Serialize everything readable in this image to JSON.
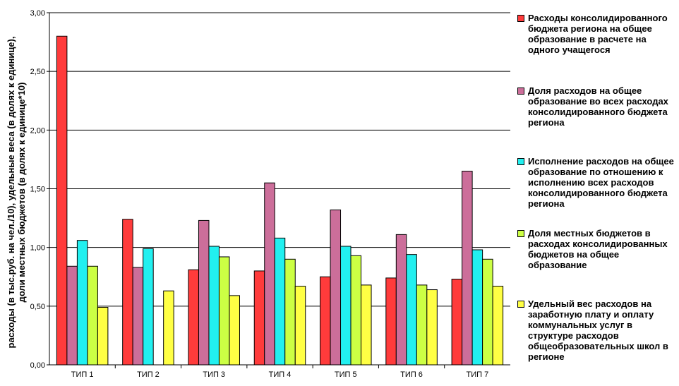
{
  "chart_data": {
    "type": "bar",
    "categories": [
      "ТИП 1",
      "ТИП 2",
      "ТИП 3",
      "ТИП 4",
      "ТИП 5",
      "ТИП 6",
      "ТИП 7"
    ],
    "series": [
      {
        "name": "Расходы консолидированного бюджета региона на общее образование в расчете на одного учащегося",
        "color": "#ff3b3b",
        "values": [
          2.8,
          1.24,
          0.81,
          0.8,
          0.75,
          0.74,
          0.73
        ]
      },
      {
        "name": "Доля расходов на общее образование во всех расходах консолидированного бюджета региона",
        "color": "#cc6e9a",
        "values": [
          0.84,
          0.83,
          1.23,
          1.55,
          1.32,
          1.11,
          1.65
        ]
      },
      {
        "name": "Исполнение расходов на общее образование по отношению к исполнению всех расходов консолидированного бюджета региона",
        "color": "#22f0f0",
        "values": [
          1.06,
          0.99,
          1.01,
          1.08,
          1.01,
          0.94,
          0.98
        ]
      },
      {
        "name": "Доля местных бюджетов в расходах консолидированных бюджетов на общее образование",
        "color": "#ccff44",
        "values": [
          0.84,
          0.0,
          0.92,
          0.9,
          0.93,
          0.68,
          0.9
        ]
      },
      {
        "name": "Удельный вес расходов на заработную плату и оплату коммунальных услуг в структуре расходов общеобразовательных школ в регионе",
        "color": "#ffff44",
        "values": [
          0.49,
          0.63,
          0.59,
          0.67,
          0.68,
          0.64,
          0.67
        ]
      }
    ],
    "title": "",
    "xlabel": "",
    "ylabel": "расходы (в тыс.руб. на чел./10), удельные веса (в долях к единице), доли местных бюджетов (в долях к единице*10)",
    "ylim": [
      0,
      3
    ],
    "yticks": [
      "0,00",
      "0,50",
      "1,00",
      "1,50",
      "2,00",
      "2,50",
      "3,00"
    ],
    "grid": true,
    "legend_position": "right"
  }
}
